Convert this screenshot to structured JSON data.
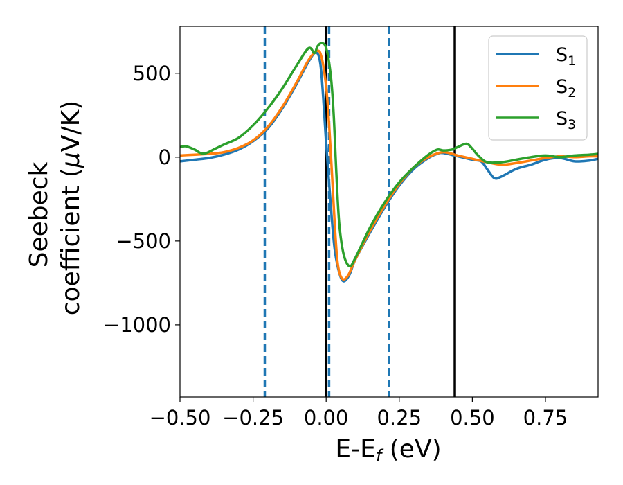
{
  "chart_data": {
    "type": "line",
    "title": "",
    "xlabel": {
      "main": "E-E",
      "sub": "f",
      "tail": " (eV)"
    },
    "ylabel": {
      "line1": "Seebeck",
      "line2_pre": "coefficient  (",
      "mu": "μ",
      "line2_post": "V/K)"
    },
    "xlim": [
      -0.5,
      0.93
    ],
    "ylim": [
      -1430,
      780
    ],
    "xticks": [
      -0.5,
      -0.25,
      0.0,
      0.25,
      0.5,
      0.75
    ],
    "xtick_labels": [
      "−0.50",
      "−0.25",
      "0.00",
      "0.25",
      "0.50",
      "0.75"
    ],
    "yticks": [
      500,
      0,
      -500,
      -1000
    ],
    "ytick_labels": [
      "500",
      "0",
      "−500",
      "−1000"
    ],
    "grid": false,
    "legend_position": "top-right",
    "vlines_solid": {
      "x": [
        0.0,
        0.44
      ],
      "color": "#000000"
    },
    "vlines_dashed": {
      "x": [
        -0.21,
        0.01,
        0.215
      ],
      "color": "#1f77b4"
    },
    "series": [
      {
        "name": "S",
        "sub": "1",
        "color": "#1f77b4",
        "points": [
          [
            -0.5,
            -25
          ],
          [
            -0.45,
            -15
          ],
          [
            -0.4,
            -5
          ],
          [
            -0.35,
            15
          ],
          [
            -0.3,
            45
          ],
          [
            -0.25,
            95
          ],
          [
            -0.2,
            170
          ],
          [
            -0.15,
            290
          ],
          [
            -0.1,
            440
          ],
          [
            -0.06,
            570
          ],
          [
            -0.035,
            625
          ],
          [
            -0.02,
            560
          ],
          [
            -0.01,
            350
          ],
          [
            0.0,
            80
          ],
          [
            0.01,
            -150
          ],
          [
            0.02,
            -380
          ],
          [
            0.03,
            -560
          ],
          [
            0.045,
            -690
          ],
          [
            0.06,
            -740
          ],
          [
            0.08,
            -700
          ],
          [
            0.1,
            -610
          ],
          [
            0.15,
            -450
          ],
          [
            0.2,
            -300
          ],
          [
            0.25,
            -170
          ],
          [
            0.3,
            -70
          ],
          [
            0.35,
            -5
          ],
          [
            0.38,
            20
          ],
          [
            0.4,
            25
          ],
          [
            0.45,
            5
          ],
          [
            0.5,
            -15
          ],
          [
            0.53,
            -25
          ],
          [
            0.55,
            -70
          ],
          [
            0.575,
            -125
          ],
          [
            0.6,
            -115
          ],
          [
            0.65,
            -70
          ],
          [
            0.7,
            -45
          ],
          [
            0.75,
            -15
          ],
          [
            0.8,
            -5
          ],
          [
            0.85,
            -25
          ],
          [
            0.9,
            -20
          ],
          [
            0.93,
            -10
          ]
        ]
      },
      {
        "name": "S",
        "sub": "2",
        "color": "#ff7f0e",
        "points": [
          [
            -0.5,
            10
          ],
          [
            -0.45,
            15
          ],
          [
            -0.4,
            20
          ],
          [
            -0.35,
            30
          ],
          [
            -0.3,
            55
          ],
          [
            -0.25,
            100
          ],
          [
            -0.2,
            180
          ],
          [
            -0.15,
            300
          ],
          [
            -0.1,
            450
          ],
          [
            -0.06,
            580
          ],
          [
            -0.03,
            635
          ],
          [
            -0.015,
            590
          ],
          [
            0.0,
            420
          ],
          [
            0.01,
            200
          ],
          [
            0.02,
            -100
          ],
          [
            0.03,
            -420
          ],
          [
            0.04,
            -640
          ],
          [
            0.055,
            -725
          ],
          [
            0.075,
            -705
          ],
          [
            0.1,
            -610
          ],
          [
            0.15,
            -440
          ],
          [
            0.2,
            -290
          ],
          [
            0.25,
            -160
          ],
          [
            0.3,
            -60
          ],
          [
            0.35,
            0
          ],
          [
            0.4,
            30
          ],
          [
            0.45,
            10
          ],
          [
            0.5,
            -10
          ],
          [
            0.55,
            -30
          ],
          [
            0.6,
            -45
          ],
          [
            0.65,
            -35
          ],
          [
            0.7,
            -20
          ],
          [
            0.75,
            -5
          ],
          [
            0.8,
            5
          ],
          [
            0.85,
            0
          ],
          [
            0.9,
            5
          ],
          [
            0.93,
            5
          ]
        ]
      },
      {
        "name": "S",
        "sub": "3",
        "color": "#2ca02c",
        "points": [
          [
            -0.5,
            60
          ],
          [
            -0.48,
            65
          ],
          [
            -0.45,
            45
          ],
          [
            -0.43,
            25
          ],
          [
            -0.41,
            25
          ],
          [
            -0.38,
            50
          ],
          [
            -0.35,
            75
          ],
          [
            -0.3,
            115
          ],
          [
            -0.25,
            190
          ],
          [
            -0.2,
            290
          ],
          [
            -0.15,
            410
          ],
          [
            -0.1,
            550
          ],
          [
            -0.06,
            650
          ],
          [
            -0.04,
            620
          ],
          [
            -0.03,
            660
          ],
          [
            -0.015,
            680
          ],
          [
            0.0,
            650
          ],
          [
            0.015,
            500
          ],
          [
            0.025,
            280
          ],
          [
            0.035,
            -100
          ],
          [
            0.045,
            -400
          ],
          [
            0.06,
            -580
          ],
          [
            0.08,
            -650
          ],
          [
            0.1,
            -600
          ],
          [
            0.15,
            -420
          ],
          [
            0.2,
            -270
          ],
          [
            0.25,
            -150
          ],
          [
            0.3,
            -60
          ],
          [
            0.35,
            15
          ],
          [
            0.38,
            45
          ],
          [
            0.4,
            40
          ],
          [
            0.43,
            45
          ],
          [
            0.45,
            60
          ],
          [
            0.48,
            80
          ],
          [
            0.5,
            50
          ],
          [
            0.52,
            10
          ],
          [
            0.55,
            -30
          ],
          [
            0.6,
            -30
          ],
          [
            0.65,
            -15
          ],
          [
            0.7,
            0
          ],
          [
            0.75,
            10
          ],
          [
            0.8,
            0
          ],
          [
            0.85,
            10
          ],
          [
            0.9,
            15
          ],
          [
            0.93,
            20
          ]
        ]
      }
    ]
  }
}
